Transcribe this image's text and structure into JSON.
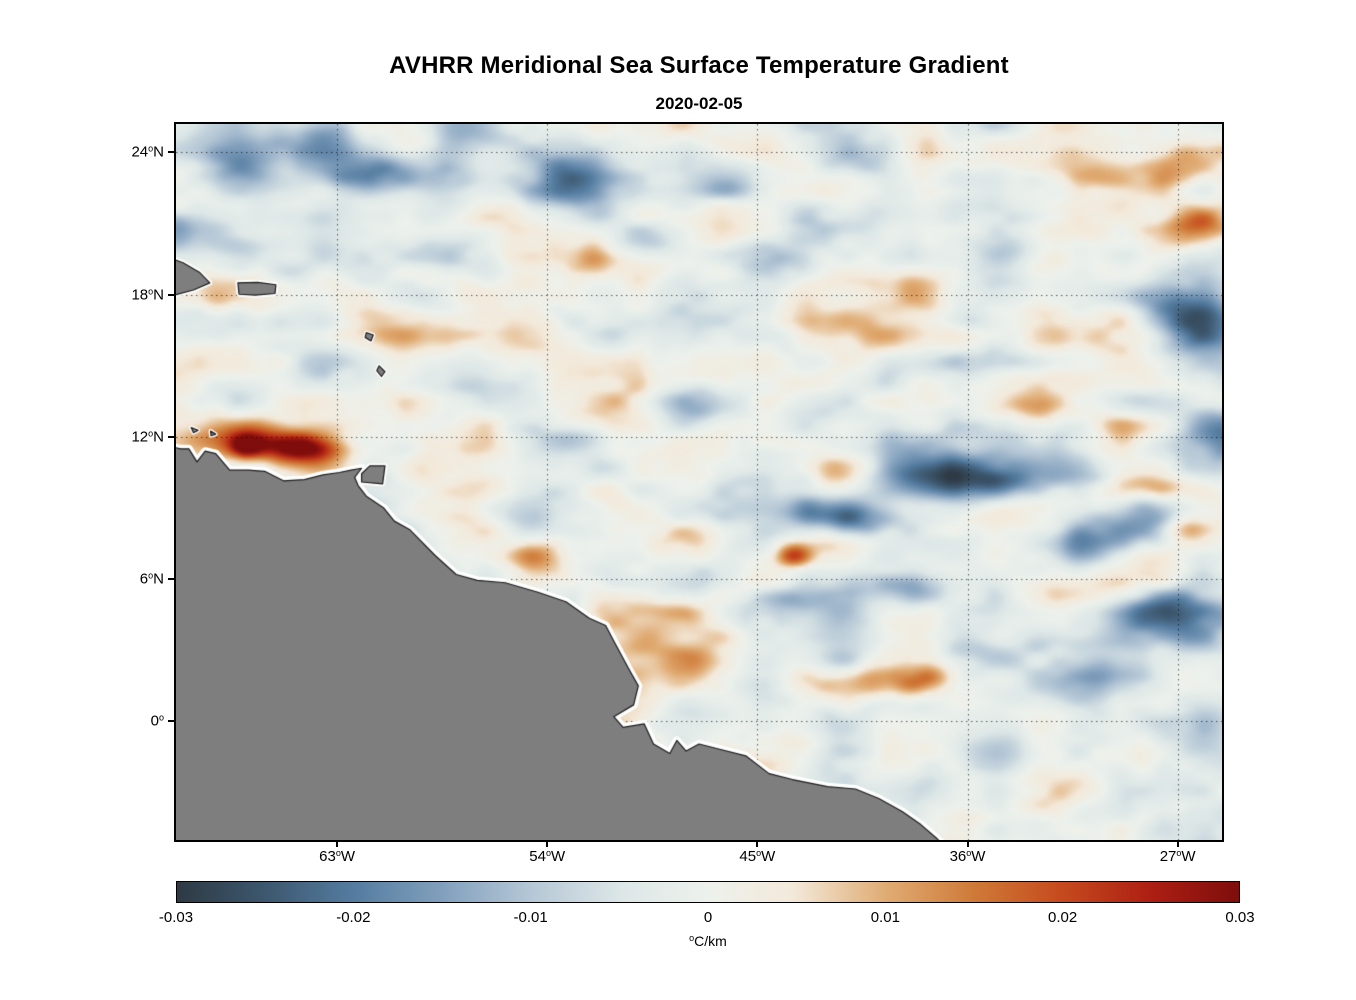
{
  "figure": {
    "background": "#ffffff"
  },
  "chart_data": {
    "type": "heatmap",
    "title": "AVHRR Meridional Sea Surface Temperature Gradient",
    "subtitle": "2020-02-05",
    "projection": "equirectangular",
    "lon_range": [
      -69.9,
      -25.1
    ],
    "lat_range": [
      -5.0,
      25.2
    ],
    "grid": {
      "style": "dotted",
      "color": "rgba(0,0,0,0.65)"
    },
    "lat_ticks": [
      {
        "value": 24,
        "deg": "24",
        "sup": "o",
        "hem": "N",
        "label": "24°N"
      },
      {
        "value": 18,
        "deg": "18",
        "sup": "o",
        "hem": "N",
        "label": "18°N"
      },
      {
        "value": 12,
        "deg": "12",
        "sup": "o",
        "hem": "N",
        "label": "12°N"
      },
      {
        "value": 6,
        "deg": "6",
        "sup": "o",
        "hem": "N",
        "label": "6°N"
      },
      {
        "value": 0,
        "deg": "0",
        "sup": "o",
        "hem": "",
        "label": "0°"
      }
    ],
    "lon_ticks": [
      {
        "value": -63,
        "deg": "63",
        "sup": "o",
        "hem": "W",
        "label": "63°W"
      },
      {
        "value": -54,
        "deg": "54",
        "sup": "o",
        "hem": "W",
        "label": "54°W"
      },
      {
        "value": -45,
        "deg": "45",
        "sup": "o",
        "hem": "W",
        "label": "45°W"
      },
      {
        "value": -36,
        "deg": "36",
        "sup": "o",
        "hem": "W",
        "label": "36°W"
      },
      {
        "value": -27,
        "deg": "27",
        "sup": "o",
        "hem": "W",
        "label": "27°W"
      }
    ],
    "colorbar": {
      "orientation": "horizontal",
      "min": -0.03,
      "max": 0.03,
      "ticks": [
        {
          "value": -0.03,
          "label": "-0.03"
        },
        {
          "value": -0.02,
          "label": "-0.02"
        },
        {
          "value": -0.01,
          "label": "-0.01"
        },
        {
          "value": 0,
          "label": "0"
        },
        {
          "value": 0.01,
          "label": "0.01"
        },
        {
          "value": 0.02,
          "label": "0.02"
        },
        {
          "value": 0.03,
          "label": "0.03"
        }
      ],
      "units": "°C/km",
      "units_sup": "o",
      "units_rest": "C/km",
      "stops": [
        {
          "t": 0.0,
          "color": "#2e3a44"
        },
        {
          "t": 0.08,
          "color": "#3c566d"
        },
        {
          "t": 0.167,
          "color": "#547ca0"
        },
        {
          "t": 0.25,
          "color": "#82a0bd"
        },
        {
          "t": 0.333,
          "color": "#b5c7d6"
        },
        {
          "t": 0.42,
          "color": "#dde7e7"
        },
        {
          "t": 0.5,
          "color": "#edf1ec"
        },
        {
          "t": 0.58,
          "color": "#f3e9da"
        },
        {
          "t": 0.667,
          "color": "#e0ac74"
        },
        {
          "t": 0.75,
          "color": "#cf7a38"
        },
        {
          "t": 0.833,
          "color": "#c64a1e"
        },
        {
          "t": 0.917,
          "color": "#ad1f13"
        },
        {
          "t": 1.0,
          "color": "#7e0d0c"
        }
      ]
    },
    "land": {
      "fill": "#7e7e7e",
      "outline": "#1c1c1c",
      "halo": "#ffffff",
      "mainland": [
        [
          -70.6,
          11.7
        ],
        [
          -69.7,
          11.5
        ],
        [
          -69.35,
          11.5
        ],
        [
          -69.0,
          10.95
        ],
        [
          -68.65,
          11.4
        ],
        [
          -68.2,
          11.3
        ],
        [
          -67.6,
          10.6
        ],
        [
          -66.8,
          10.6
        ],
        [
          -66.1,
          10.55
        ],
        [
          -65.3,
          10.15
        ],
        [
          -64.4,
          10.2
        ],
        [
          -63.6,
          10.4
        ],
        [
          -62.9,
          10.5
        ],
        [
          -62.4,
          10.6
        ],
        [
          -61.95,
          10.68
        ],
        [
          -62.25,
          10.3
        ],
        [
          -62.1,
          9.95
        ],
        [
          -61.75,
          9.5
        ],
        [
          -61.0,
          9.0
        ],
        [
          -60.55,
          8.45
        ],
        [
          -59.9,
          8.1
        ],
        [
          -58.8,
          7.0
        ],
        [
          -57.9,
          6.2
        ],
        [
          -57.0,
          5.95
        ],
        [
          -55.8,
          5.85
        ],
        [
          -54.4,
          5.45
        ],
        [
          -53.2,
          5.05
        ],
        [
          -52.2,
          4.35
        ],
        [
          -51.5,
          4.05
        ],
        [
          -51.1,
          3.3
        ],
        [
          -50.5,
          2.2
        ],
        [
          -50.1,
          1.5
        ],
        [
          -50.3,
          0.7
        ],
        [
          -51.15,
          0.2
        ],
        [
          -50.75,
          -0.25
        ],
        [
          -49.85,
          -0.1
        ],
        [
          -49.45,
          -0.95
        ],
        [
          -48.75,
          -1.35
        ],
        [
          -48.45,
          -0.8
        ],
        [
          -48.05,
          -1.25
        ],
        [
          -47.5,
          -0.95
        ],
        [
          -46.7,
          -1.15
        ],
        [
          -45.5,
          -1.45
        ],
        [
          -44.5,
          -2.2
        ],
        [
          -43.5,
          -2.45
        ],
        [
          -42.0,
          -2.75
        ],
        [
          -40.8,
          -2.85
        ],
        [
          -39.8,
          -3.25
        ],
        [
          -38.8,
          -3.8
        ],
        [
          -38.0,
          -4.35
        ],
        [
          -37.3,
          -4.95
        ],
        [
          -36.7,
          -5.5
        ],
        [
          -36.5,
          -6.8
        ],
        [
          -71.0,
          -6.8
        ],
        [
          -71.0,
          11.7
        ]
      ],
      "islands": [
        {
          "name": "hispaniola",
          "points": [
            [
              -70.6,
              19.7
            ],
            [
              -69.6,
              19.35
            ],
            [
              -68.9,
              18.95
            ],
            [
              -68.45,
              18.5
            ],
            [
              -69.15,
              18.2
            ],
            [
              -69.9,
              18.0
            ],
            [
              -70.6,
              18.15
            ]
          ]
        },
        {
          "name": "puerto-rico",
          "points": [
            [
              -67.25,
              18.5
            ],
            [
              -66.4,
              18.52
            ],
            [
              -65.62,
              18.42
            ],
            [
              -65.66,
              18.05
            ],
            [
              -66.5,
              17.98
            ],
            [
              -67.2,
              18.02
            ]
          ]
        },
        {
          "name": "guadeloupe",
          "points": [
            [
              -61.75,
              16.4
            ],
            [
              -61.45,
              16.3
            ],
            [
              -61.55,
              16.05
            ],
            [
              -61.8,
              16.2
            ]
          ]
        },
        {
          "name": "martinique",
          "points": [
            [
              -61.2,
              15.0
            ],
            [
              -60.95,
              14.75
            ],
            [
              -61.1,
              14.55
            ],
            [
              -61.3,
              14.8
            ]
          ]
        },
        {
          "name": "trinidad",
          "points": [
            [
              -61.95,
              10.1
            ],
            [
              -61.05,
              10.02
            ],
            [
              -60.95,
              10.78
            ],
            [
              -61.6,
              10.78
            ],
            [
              -61.95,
              10.45
            ]
          ]
        },
        {
          "name": "curacao",
          "points": [
            [
              -69.25,
              12.4
            ],
            [
              -68.95,
              12.28
            ],
            [
              -69.15,
              12.18
            ]
          ]
        },
        {
          "name": "bonaire",
          "points": [
            [
              -68.42,
              12.25
            ],
            [
              -68.2,
              12.12
            ],
            [
              -68.4,
              12.05
            ]
          ]
        }
      ]
    },
    "field": {
      "seed": 7,
      "bias": 0.0,
      "octaves": [
        {
          "lon_scale": 3.2,
          "lat_scale": 1.5,
          "amp": 0.0082,
          "ox": 0.0,
          "oy": 0.0
        },
        {
          "lon_scale": 1.7,
          "lat_scale": 0.9,
          "amp": 0.0042,
          "ox": 7.3,
          "oy": 3.1
        },
        {
          "lon_scale": 0.9,
          "lat_scale": 0.55,
          "amp": 0.0019,
          "ox": 13.7,
          "oy": 9.4
        }
      ],
      "feature_format": [
        "lon",
        "lat",
        "sigma_lon",
        "sigma_lat",
        "amplitude"
      ],
      "features": [
        [
          -67.3,
          23.6,
          1.6,
          0.9,
          -0.02
        ],
        [
          -63.8,
          24.6,
          1.4,
          0.8,
          -0.016
        ],
        [
          -61.2,
          23.1,
          1.9,
          0.7,
          -0.022
        ],
        [
          -57.4,
          24.4,
          1.2,
          0.7,
          -0.013
        ],
        [
          -53.3,
          22.6,
          1.7,
          0.9,
          -0.024
        ],
        [
          -46.3,
          23.0,
          1.5,
          0.8,
          -0.012
        ],
        [
          -41.0,
          23.8,
          1.2,
          0.7,
          -0.01
        ],
        [
          -50.0,
          20.3,
          1.5,
          0.6,
          -0.009
        ],
        [
          -68.5,
          20.6,
          1.3,
          0.7,
          -0.011
        ],
        [
          -59.5,
          18.0,
          1.2,
          0.6,
          -0.009
        ],
        [
          -44.0,
          19.5,
          1.4,
          0.6,
          -0.008
        ],
        [
          -36.3,
          10.2,
          2.2,
          0.8,
          -0.026
        ],
        [
          -40.8,
          8.6,
          1.6,
          0.55,
          -0.019
        ],
        [
          -39.2,
          5.7,
          1.8,
          0.6,
          -0.017
        ],
        [
          -43.8,
          5.2,
          1.2,
          0.5,
          -0.011
        ],
        [
          -31.4,
          7.4,
          1.6,
          0.7,
          -0.019
        ],
        [
          -28.3,
          8.6,
          1.8,
          0.9,
          -0.023
        ],
        [
          -26.3,
          16.9,
          1.5,
          1.0,
          -0.024
        ],
        [
          -25.3,
          12.1,
          1.2,
          0.9,
          -0.018
        ],
        [
          -27.2,
          4.6,
          1.6,
          0.8,
          -0.019
        ],
        [
          -44.8,
          1.6,
          1.5,
          0.6,
          -0.011
        ],
        [
          -52.5,
          12.0,
          1.3,
          0.5,
          -0.008
        ],
        [
          -57.0,
          14.2,
          1.2,
          0.5,
          -0.008
        ],
        [
          -47.0,
          13.4,
          1.6,
          0.5,
          -0.008
        ],
        [
          -33.5,
          20.5,
          1.3,
          0.7,
          -0.009
        ],
        [
          -30.0,
          2.1,
          1.5,
          0.8,
          -0.01
        ],
        [
          -67.0,
          12.0,
          2.6,
          0.8,
          0.013
        ],
        [
          -64.6,
          11.55,
          1.15,
          0.45,
          0.03
        ],
        [
          -66.9,
          11.6,
          0.5,
          0.35,
          0.022
        ],
        [
          -54.6,
          7.0,
          0.9,
          0.45,
          0.016
        ],
        [
          -43.4,
          7.0,
          0.55,
          0.35,
          0.022
        ],
        [
          -26.6,
          8.1,
          0.8,
          0.5,
          0.018
        ],
        [
          -27.9,
          9.9,
          1.2,
          0.4,
          0.013
        ],
        [
          -26.2,
          20.9,
          0.9,
          0.6,
          0.013
        ],
        [
          -41.2,
          1.6,
          1.8,
          0.5,
          0.012
        ],
        [
          -37.6,
          1.9,
          1.4,
          0.5,
          0.009
        ],
        [
          -47.9,
          2.1,
          1.6,
          0.7,
          0.008
        ],
        [
          -29.3,
          12.6,
          1.4,
          0.7,
          0.01
        ],
        [
          -33.4,
          13.2,
          1.2,
          0.5,
          0.008
        ],
        [
          -56.8,
          21.2,
          1.4,
          0.6,
          0.008
        ],
        [
          -27.3,
          23.4,
          1.2,
          0.6,
          0.01
        ],
        [
          -30.8,
          23.1,
          1.0,
          0.5,
          0.008
        ],
        [
          -49.8,
          24.2,
          1.0,
          0.5,
          0.008
        ],
        [
          -52.0,
          19.6,
          0.8,
          0.5,
          0.008
        ],
        [
          -59.2,
          10.7,
          1.0,
          0.4,
          0.008
        ]
      ]
    }
  }
}
